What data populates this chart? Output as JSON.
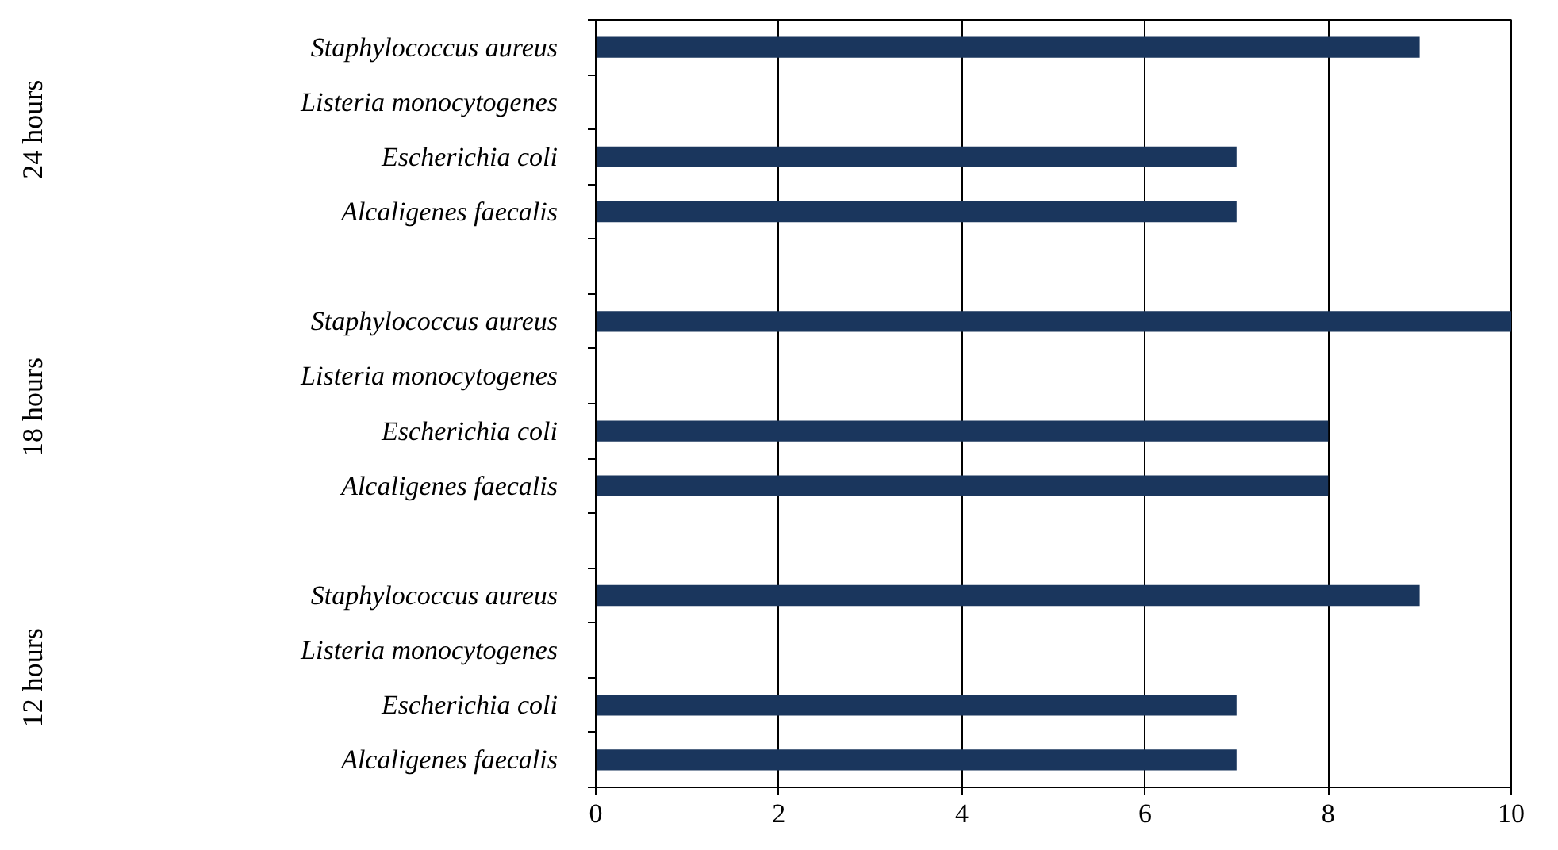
{
  "chart_data": {
    "type": "bar",
    "orientation": "horizontal",
    "categories": [
      "Staphylococcus aureus",
      "Listeria monocytogenes",
      "Escherichia coli",
      "Alcaligenes faecalis",
      null,
      "Staphylococcus aureus",
      "Listeria monocytogenes",
      "Escherichia coli",
      "Alcaligenes faecalis",
      null,
      "Staphylococcus aureus",
      "Listeria monocytogenes",
      "Escherichia coli",
      "Alcaligenes faecalis"
    ],
    "values": [
      9,
      null,
      7,
      7,
      null,
      10,
      null,
      8,
      8,
      null,
      9,
      null,
      7,
      7
    ],
    "color": "#1a365d",
    "xlim": [
      0,
      10
    ],
    "xticks": [
      0,
      2,
      4,
      6,
      8,
      10
    ],
    "grid": "x",
    "annotations": [
      "24 hours",
      "18  hours",
      "12 hours"
    ]
  }
}
